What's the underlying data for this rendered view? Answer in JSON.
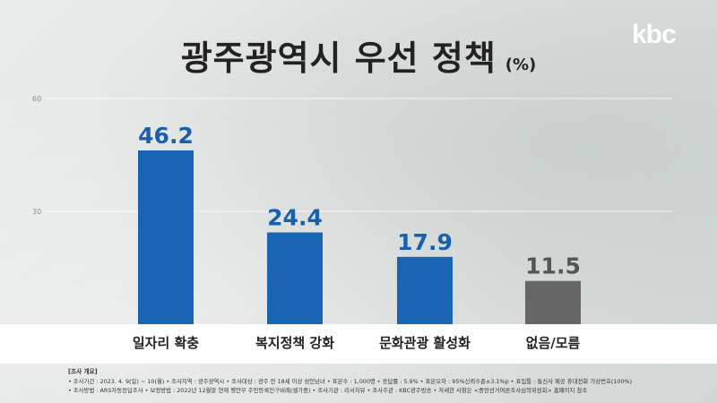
{
  "header": {
    "title": "광주광역시 우선 정책",
    "unit": "(%)",
    "logo": "kbc"
  },
  "chart_data": {
    "type": "bar",
    "title": "광주광역시 우선 정책",
    "unit": "(%)",
    "categories": [
      "일자리 확충",
      "복지정책 강화",
      "문화관광 활성화",
      "없음/모름"
    ],
    "values": [
      46.2,
      24.4,
      17.9,
      11.5
    ],
    "value_labels": [
      "46.2",
      "24.4",
      "17.9",
      "11.5"
    ],
    "colors": [
      "#1a64b4",
      "#1a64b4",
      "#1a64b4",
      "#666666"
    ],
    "label_colors": [
      "#1a5fae",
      "#1a5fae",
      "#1a5fae",
      "#555555"
    ],
    "ylim": [
      0,
      60
    ],
    "yticks": [
      30,
      60
    ],
    "ytick_labels": [
      "30",
      "60"
    ],
    "grid": true,
    "legend": "none"
  },
  "footer": {
    "heading": "[조사 개요]",
    "line1": "• 조사기간 : 2023. 4. 9(일) ~ 10(월)   • 조사지역 : 광주광역시   • 조사대상 : 광주 만 18세 이상 성인남녀   • 표본수 : 1,000명   • 응답률 : 5.9%   • 표본오차 : 95%신뢰수준±3.1%p   • 표집틀 : 통신사 제공 휴대전화 가상번호(100%)",
    "line2": "• 조사방법 : ARS자동응답조사   • 보정방법 : 2022년 12월말 현재 행안부 주민등록인구비례(셀가중)   • 조사기관 : 리서치뷰   • 조사주관 : KBC광주방송   • 자세한 사항은 <중앙선거여론조사심의위원회> 홈페이지 참조"
  }
}
